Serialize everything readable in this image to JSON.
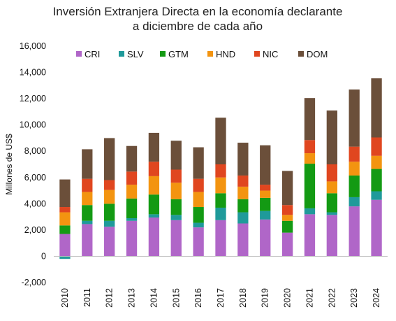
{
  "chart_data": {
    "type": "bar",
    "stacked": true,
    "title_lines": [
      "Inversión Extranjera Directa en la economía declarante",
      "a diciembre de cada año"
    ],
    "ylabel": "Millones de US$",
    "xlabel": "",
    "ylim": [
      -2000,
      16000
    ],
    "yticks": [
      -2000,
      0,
      2000,
      4000,
      6000,
      8000,
      10000,
      12000,
      14000,
      16000
    ],
    "ytick_labels": [
      "-2,000",
      "0",
      "2,000",
      "4,000",
      "6,000",
      "8,000",
      "10,000",
      "12,000",
      "14,000",
      "16,000"
    ],
    "grid": false,
    "legend_position": "top",
    "categories": [
      "2010",
      "2011",
      "2012",
      "2013",
      "2014",
      "2015",
      "2016",
      "2017",
      "2018",
      "2019",
      "2020",
      "2021",
      "2022",
      "2023",
      "2024"
    ],
    "series": [
      {
        "name": "CRI",
        "color": "#b066c8",
        "values": [
          1700,
          2450,
          2250,
          2700,
          2950,
          2750,
          2200,
          2750,
          2500,
          2800,
          1800,
          3200,
          3150,
          3800,
          4300
        ]
      },
      {
        "name": "SLV",
        "color": "#1f9a9a",
        "values": [
          -200,
          250,
          450,
          200,
          250,
          400,
          350,
          950,
          850,
          650,
          0,
          450,
          200,
          700,
          650
        ]
      },
      {
        "name": "GTM",
        "color": "#139a13",
        "values": [
          650,
          1200,
          1300,
          1500,
          1500,
          1200,
          1200,
          1100,
          1000,
          1000,
          900,
          3400,
          1450,
          1650,
          1700
        ]
      },
      {
        "name": "HND",
        "color": "#f39410",
        "values": [
          1000,
          1000,
          1050,
          1050,
          1400,
          1250,
          1150,
          1200,
          950,
          550,
          450,
          800,
          900,
          1050,
          1000
        ]
      },
      {
        "name": "NIC",
        "color": "#e0461f",
        "values": [
          400,
          1000,
          750,
          1000,
          1100,
          1000,
          1000,
          1000,
          850,
          450,
          750,
          1000,
          1300,
          1150,
          1400
        ]
      },
      {
        "name": "DOM",
        "color": "#6b4f3a",
        "values": [
          2100,
          2250,
          3200,
          1950,
          2200,
          2200,
          2400,
          3550,
          2500,
          3000,
          2600,
          3200,
          4100,
          4350,
          4500
        ]
      }
    ]
  }
}
